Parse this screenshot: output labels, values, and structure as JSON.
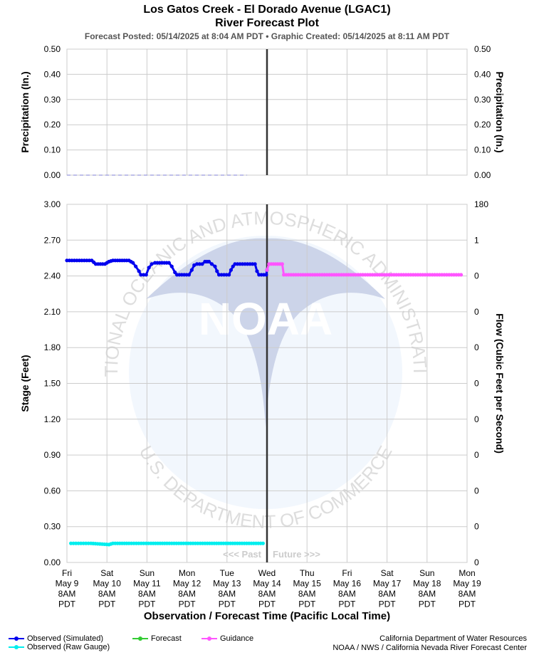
{
  "header": {
    "title": "Los Gatos Creek - El Dorado Avenue (LGAC1)",
    "subtitle": "River Forecast Plot",
    "posted": "Forecast Posted: 05/14/2025 at 8:04 AM PDT  •  Graphic Created: 05/14/2025 at 8:11 AM PDT"
  },
  "colors": {
    "observed_simulated": "#0000ee",
    "observed_raw": "#00eeee",
    "forecast": "#33cc33",
    "guidance": "#ff55ff",
    "grid": "#cccccc",
    "now_line": "#333333"
  },
  "chart_data": [
    {
      "type": "line",
      "panel": "precipitation",
      "ylabel": "Precipitation (In.)",
      "ylabel_right": "Precipitation (In.)",
      "ylim": [
        0,
        0.5
      ],
      "yticks": [
        "0.00",
        "0.10",
        "0.20",
        "0.30",
        "0.40",
        "0.50"
      ],
      "yticks_right": [
        "0.00",
        "0.10",
        "0.20",
        "0.30",
        "0.40",
        "0.50"
      ],
      "series": [
        {
          "values": [
            [
              0,
              0
            ],
            [
              4.5,
              0
            ]
          ],
          "style": "dashed"
        }
      ]
    },
    {
      "type": "line",
      "panel": "stage",
      "ylabel": "Stage (Feet)",
      "ylabel_right": "Flow (Cubic Feet per Second)",
      "ylim": [
        0,
        3.0
      ],
      "yticks": [
        "0.00",
        "0.30",
        "0.60",
        "0.90",
        "1.20",
        "1.50",
        "1.80",
        "2.10",
        "2.40",
        "2.70",
        "3.00"
      ],
      "yticks_right": [
        "0",
        "0",
        "0",
        "0",
        "0",
        "0",
        "0",
        "0",
        "0",
        "1",
        "180"
      ],
      "xlabel": "Observation / Forecast Time (Pacific Local Time)",
      "x_unit": "days since Fri May 9 8AM PDT",
      "xlim": [
        0,
        10
      ],
      "now_x": 5,
      "past_label": "<<< Past",
      "future_label": "Future >>>",
      "xticks": [
        [
          "Fri",
          "May 9",
          "8AM",
          "PDT"
        ],
        [
          "Sat",
          "May 10",
          "8AM",
          "PDT"
        ],
        [
          "Sun",
          "May 11",
          "8AM",
          "PDT"
        ],
        [
          "Mon",
          "May 12",
          "8AM",
          "PDT"
        ],
        [
          "Tue",
          "May 13",
          "8AM",
          "PDT"
        ],
        [
          "Wed",
          "May 14",
          "8AM",
          "PDT"
        ],
        [
          "Thu",
          "May 15",
          "8AM",
          "PDT"
        ],
        [
          "Fri",
          "May 16",
          "8AM",
          "PDT"
        ],
        [
          "Sat",
          "May 17",
          "8AM",
          "PDT"
        ],
        [
          "Sun",
          "May 18",
          "8AM",
          "PDT"
        ],
        [
          "Mon",
          "May 19",
          "8AM",
          "PDT"
        ]
      ],
      "series": [
        {
          "name": "Observed (Simulated)",
          "values": [
            [
              0.0,
              2.53
            ],
            [
              0.62,
              2.53
            ],
            [
              0.72,
              2.5
            ],
            [
              0.95,
              2.5
            ],
            [
              1.05,
              2.52
            ],
            [
              1.15,
              2.53
            ],
            [
              1.55,
              2.53
            ],
            [
              1.65,
              2.51
            ],
            [
              1.72,
              2.48
            ],
            [
              1.8,
              2.44
            ],
            [
              1.85,
              2.41
            ],
            [
              1.98,
              2.41
            ],
            [
              2.05,
              2.47
            ],
            [
              2.12,
              2.5
            ],
            [
              2.2,
              2.51
            ],
            [
              2.55,
              2.51
            ],
            [
              2.62,
              2.48
            ],
            [
              2.7,
              2.43
            ],
            [
              2.75,
              2.41
            ],
            [
              3.05,
              2.41
            ],
            [
              3.12,
              2.45
            ],
            [
              3.18,
              2.49
            ],
            [
              3.25,
              2.5
            ],
            [
              3.38,
              2.5
            ],
            [
              3.45,
              2.52
            ],
            [
              3.55,
              2.52
            ],
            [
              3.62,
              2.5
            ],
            [
              3.7,
              2.48
            ],
            [
              3.75,
              2.44
            ],
            [
              3.8,
              2.41
            ],
            [
              4.05,
              2.41
            ],
            [
              4.1,
              2.45
            ],
            [
              4.15,
              2.48
            ],
            [
              4.2,
              2.5
            ],
            [
              4.7,
              2.5
            ],
            [
              4.75,
              2.44
            ],
            [
              4.8,
              2.41
            ],
            [
              4.98,
              2.41
            ],
            [
              5.0,
              2.45
            ]
          ]
        },
        {
          "name": "Observed (Raw Gauge)",
          "values": [
            [
              0.1,
              0.16
            ],
            [
              0.6,
              0.16
            ],
            [
              1.05,
              0.15
            ],
            [
              1.15,
              0.16
            ],
            [
              1.55,
              0.16
            ],
            [
              2.1,
              0.16
            ],
            [
              2.5,
              0.16
            ],
            [
              3.15,
              0.16
            ],
            [
              3.45,
              0.16
            ],
            [
              4.2,
              0.16
            ],
            [
              4.55,
              0.16
            ],
            [
              4.9,
              0.16
            ]
          ]
        },
        {
          "name": "Forecast",
          "values": []
        },
        {
          "name": "Guidance",
          "values": [
            [
              5.0,
              2.45
            ],
            [
              5.05,
              2.5
            ],
            [
              5.38,
              2.5
            ],
            [
              5.42,
              2.41
            ],
            [
              9.85,
              2.41
            ]
          ]
        }
      ]
    }
  ],
  "legend": {
    "observed_simulated": "Observed (Simulated)",
    "observed_raw": "Observed (Raw Gauge)",
    "forecast": "Forecast",
    "guidance": "Guidance"
  },
  "credit": {
    "line1": "California Department of Water Resources",
    "line2": "NOAA / NWS / California Nevada River Forecast Center"
  },
  "watermark": {
    "logo_text": "NOAA",
    "ring_text": "NATIONAL OCEANIC AND ATMOSPHERIC ADMINISTRATION",
    "bottom_text": "U.S. DEPARTMENT OF COMMERCE"
  }
}
